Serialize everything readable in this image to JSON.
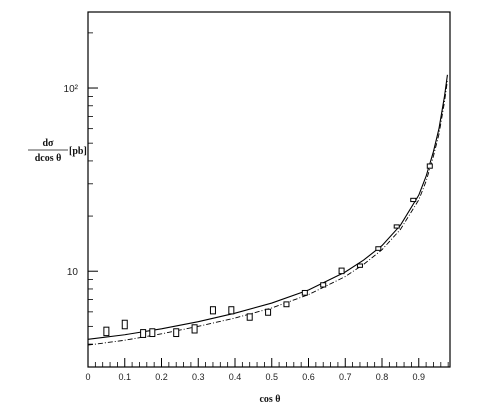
{
  "chart_data": {
    "type": "scatter",
    "title": "",
    "xlabel": "cos θ",
    "ylabel": {
      "numerator": "dσ",
      "denominator": "dcos θ",
      "unit": "[pb]"
    },
    "xlim": [
      0,
      0.985
    ],
    "ylim": [
      3,
      260
    ],
    "yscale": "log",
    "grid": false,
    "x_ticks": [
      0,
      0.1,
      0.2,
      0.3,
      0.4,
      0.5,
      0.6,
      0.7,
      0.8,
      0.9
    ],
    "x_tick_labels": [
      "0",
      "0.1",
      "0.2",
      "0.3",
      "0.4",
      "0.5",
      "0.6",
      "0.7",
      "0.8",
      "0.9"
    ],
    "y_ticks": [
      10,
      100
    ],
    "y_tick_labels": [
      "10",
      "10²"
    ],
    "series": [
      {
        "style": "boxes",
        "points": [
          {
            "x": 0.05,
            "y": 4.7,
            "ylo": 4.45,
            "yhi": 4.95
          },
          {
            "x": 0.1,
            "y": 5.1,
            "ylo": 4.85,
            "yhi": 5.4
          },
          {
            "x": 0.15,
            "y": 4.55,
            "ylo": 4.35,
            "yhi": 4.8
          },
          {
            "x": 0.175,
            "y": 4.6,
            "ylo": 4.4,
            "yhi": 4.85
          },
          {
            "x": 0.24,
            "y": 4.6,
            "ylo": 4.4,
            "yhi": 4.85
          },
          {
            "x": 0.29,
            "y": 4.85,
            "ylo": 4.6,
            "yhi": 5.1
          },
          {
            "x": 0.34,
            "y": 6.1,
            "ylo": 5.85,
            "yhi": 6.4
          },
          {
            "x": 0.39,
            "y": 6.1,
            "ylo": 5.85,
            "yhi": 6.4
          },
          {
            "x": 0.44,
            "y": 5.6,
            "ylo": 5.4,
            "yhi": 5.85
          },
          {
            "x": 0.49,
            "y": 5.95,
            "ylo": 5.75,
            "yhi": 6.2
          },
          {
            "x": 0.54,
            "y": 6.6,
            "ylo": 6.4,
            "yhi": 6.8
          },
          {
            "x": 0.59,
            "y": 7.6,
            "ylo": 7.4,
            "yhi": 7.85
          },
          {
            "x": 0.64,
            "y": 8.4,
            "ylo": 8.2,
            "yhi": 8.65
          },
          {
            "x": 0.69,
            "y": 10.0,
            "ylo": 9.7,
            "yhi": 10.4
          },
          {
            "x": 0.74,
            "y": 10.7,
            "ylo": 10.5,
            "yhi": 10.95
          },
          {
            "x": 0.79,
            "y": 13.3,
            "ylo": 13.0,
            "yhi": 13.6
          },
          {
            "x": 0.84,
            "y": 17.5,
            "ylo": 17.2,
            "yhi": 17.9
          },
          {
            "x": 0.885,
            "y": 24.5,
            "ylo": 24.0,
            "yhi": 25.0
          },
          {
            "x": 0.93,
            "y": 37.5,
            "ylo": 36.5,
            "yhi": 38.5
          }
        ]
      },
      {
        "style": "solid",
        "x": [
          0.0,
          0.1,
          0.2,
          0.3,
          0.4,
          0.5,
          0.6,
          0.7,
          0.75,
          0.8,
          0.85,
          0.9,
          0.92,
          0.94,
          0.955,
          0.97,
          0.978
        ],
        "y": [
          4.25,
          4.5,
          4.85,
          5.3,
          5.9,
          6.7,
          7.9,
          9.9,
          11.5,
          13.8,
          17.8,
          26.0,
          33.0,
          45.0,
          60.0,
          90.0,
          118.0
        ]
      },
      {
        "style": "dashed",
        "x": [
          0.0,
          0.1,
          0.2,
          0.3,
          0.4,
          0.5,
          0.6,
          0.7,
          0.75,
          0.8,
          0.85,
          0.9,
          0.92,
          0.94,
          0.955,
          0.97,
          0.978
        ],
        "y": [
          3.95,
          4.2,
          4.55,
          5.0,
          5.55,
          6.3,
          7.45,
          9.35,
          10.9,
          13.1,
          16.9,
          24.5,
          31.0,
          42.5,
          56.0,
          84.0,
          110.0
        ]
      }
    ]
  }
}
